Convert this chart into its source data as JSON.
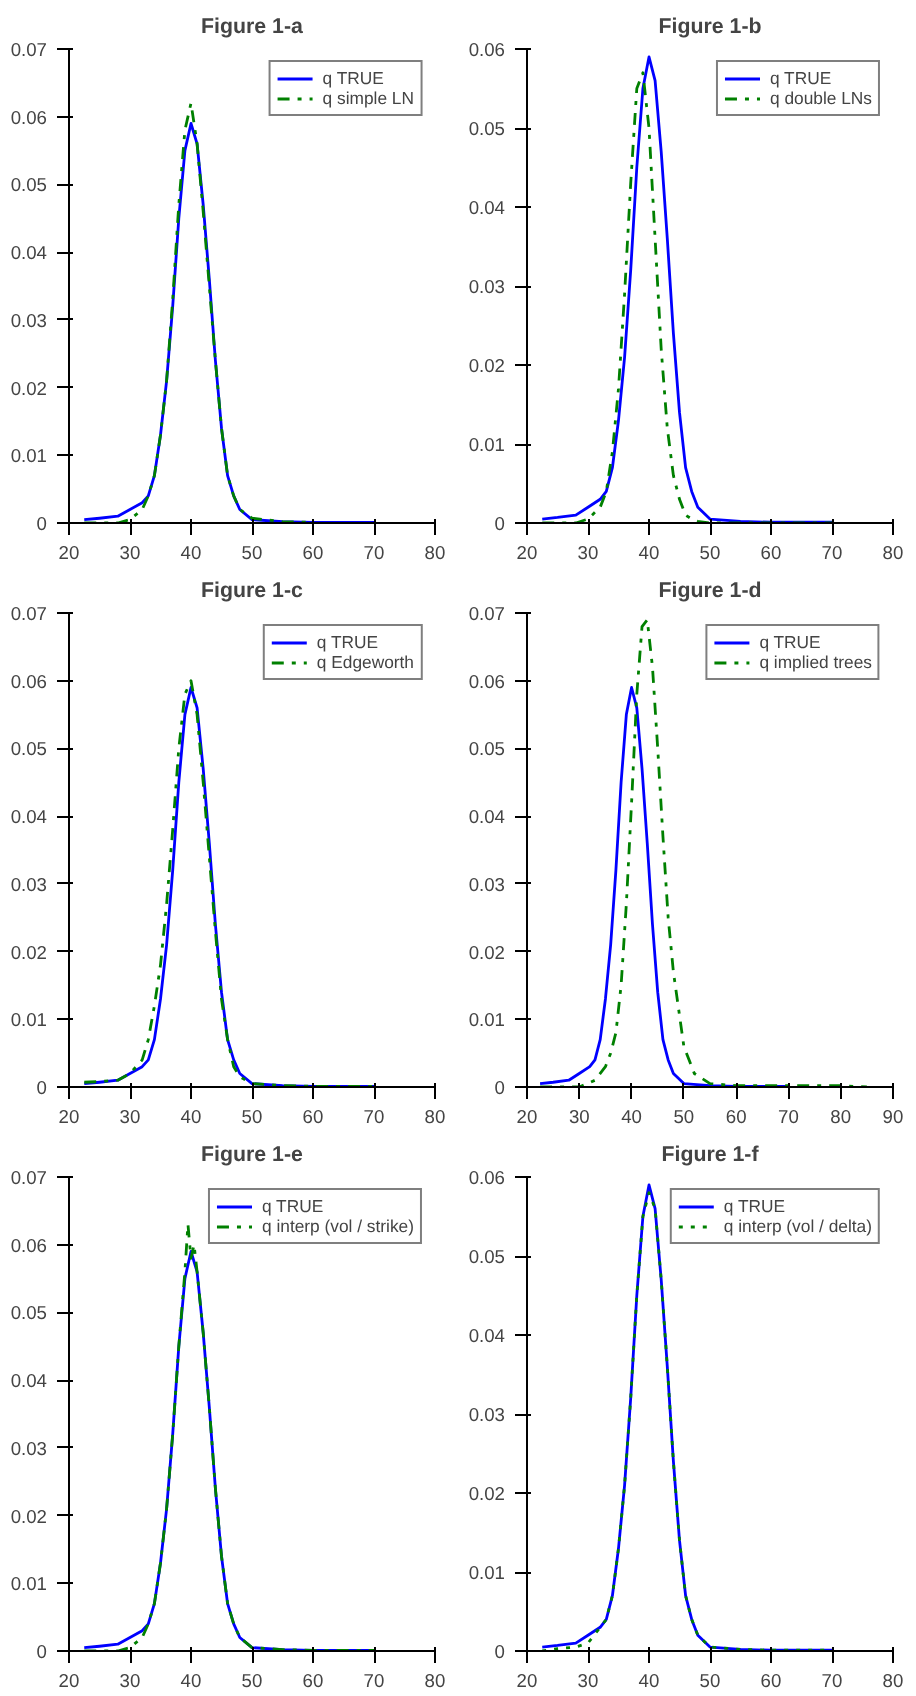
{
  "chart_data": [
    {
      "type": "line",
      "title": "Figure 1-a",
      "xlim": [
        20,
        80
      ],
      "xticks": [
        20,
        30,
        40,
        50,
        60,
        70,
        80
      ],
      "ylim": [
        0,
        0.07
      ],
      "yticks": [
        0,
        0.01,
        0.02,
        0.03,
        0.04,
        0.05,
        0.06,
        0.07
      ],
      "legend": "top right",
      "grid": false,
      "series": [
        {
          "name": "q TRUE",
          "color": "#0000ff",
          "line_style": "solid",
          "x": [
            22.5,
            25,
            28,
            30,
            32,
            33,
            34,
            35,
            36,
            37,
            38,
            39,
            40,
            41,
            42,
            43,
            44,
            45,
            46,
            47,
            48,
            50,
            55,
            60,
            70
          ],
          "values": [
            0.0005,
            0.0007,
            0.001,
            0.002,
            0.003,
            0.004,
            0.007,
            0.013,
            0.021,
            0.032,
            0.045,
            0.055,
            0.059,
            0.056,
            0.047,
            0.036,
            0.024,
            0.014,
            0.007,
            0.004,
            0.002,
            0.0005,
            0.0002,
            0.0001,
            0.0001
          ]
        },
        {
          "name": "q simple LN",
          "color": "#008000",
          "line_style": "dashdot",
          "x": [
            22.5,
            28,
            30,
            32,
            33,
            34,
            35,
            36,
            37,
            38,
            39,
            40,
            41,
            42,
            43,
            44,
            45,
            46,
            47,
            48,
            50,
            55,
            60
          ],
          "values": [
            0,
            0,
            0.0005,
            0.002,
            0.004,
            0.007,
            0.013,
            0.021,
            0.033,
            0.047,
            0.058,
            0.062,
            0.056,
            0.046,
            0.035,
            0.024,
            0.014,
            0.007,
            0.004,
            0.002,
            0.0007,
            0.0002,
            0.0001
          ]
        }
      ]
    },
    {
      "type": "line",
      "title": "Figure 1-b",
      "xlim": [
        20,
        80
      ],
      "xticks": [
        20,
        30,
        40,
        50,
        60,
        70,
        80
      ],
      "ylim": [
        0,
        0.06
      ],
      "yticks": [
        0,
        0.01,
        0.02,
        0.03,
        0.04,
        0.05,
        0.06
      ],
      "legend": "top right",
      "grid": false,
      "series": [
        {
          "name": "q TRUE",
          "color": "#0000ff",
          "line_style": "solid",
          "x": [
            22.5,
            25,
            28,
            30,
            32,
            33,
            34,
            35,
            36,
            37,
            38,
            39,
            40,
            41,
            42,
            43,
            44,
            45,
            46,
            47,
            48,
            50,
            55,
            60,
            70
          ],
          "values": [
            0.0005,
            0.0007,
            0.001,
            0.002,
            0.003,
            0.004,
            0.007,
            0.013,
            0.021,
            0.032,
            0.045,
            0.055,
            0.059,
            0.056,
            0.047,
            0.036,
            0.024,
            0.014,
            0.007,
            0.004,
            0.002,
            0.0005,
            0.0002,
            0.0001,
            0.0001
          ]
        },
        {
          "name": "q double LNs",
          "color": "#008000",
          "line_style": "dashdot",
          "x": [
            22.5,
            28,
            30,
            32,
            33,
            34,
            35,
            36,
            37,
            38,
            39,
            40,
            41,
            42,
            43,
            44,
            45,
            46,
            47,
            48,
            50,
            55,
            60,
            70
          ],
          "values": [
            0,
            0,
            0.0005,
            0.002,
            0.004,
            0.009,
            0.017,
            0.029,
            0.043,
            0.055,
            0.057,
            0.05,
            0.036,
            0.022,
            0.012,
            0.006,
            0.003,
            0.001,
            0.0005,
            0.0002,
            0,
            0,
            0,
            0
          ]
        }
      ]
    },
    {
      "type": "line",
      "title": "Figure 1-c",
      "xlim": [
        20,
        80
      ],
      "xticks": [
        20,
        30,
        40,
        50,
        60,
        70,
        80
      ],
      "ylim": [
        0,
        0.07
      ],
      "yticks": [
        0,
        0.01,
        0.02,
        0.03,
        0.04,
        0.05,
        0.06,
        0.07
      ],
      "legend": "top right",
      "grid": false,
      "series": [
        {
          "name": "q TRUE",
          "color": "#0000ff",
          "line_style": "solid",
          "x": [
            22.5,
            25,
            28,
            30,
            32,
            33,
            34,
            35,
            36,
            37,
            38,
            39,
            40,
            41,
            42,
            43,
            44,
            45,
            46,
            47,
            48,
            50,
            55,
            60,
            70
          ],
          "values": [
            0.0005,
            0.0007,
            0.001,
            0.002,
            0.003,
            0.004,
            0.007,
            0.013,
            0.021,
            0.032,
            0.045,
            0.055,
            0.059,
            0.056,
            0.047,
            0.036,
            0.024,
            0.014,
            0.007,
            0.004,
            0.002,
            0.0005,
            0.0002,
            0.0001,
            0.0001
          ]
        },
        {
          "name": "q Edgeworth",
          "color": "#008000",
          "line_style": "dashdot",
          "x": [
            22.5,
            25,
            28,
            30,
            32,
            33,
            34,
            35,
            36,
            37,
            38,
            39,
            40,
            41,
            42,
            43,
            44,
            45,
            46,
            47,
            48,
            50,
            55,
            60,
            70
          ],
          "values": [
            0.0007,
            0.0008,
            0.001,
            0.002,
            0.004,
            0.007,
            0.012,
            0.018,
            0.027,
            0.038,
            0.05,
            0.058,
            0.06,
            0.055,
            0.045,
            0.034,
            0.023,
            0.013,
            0.007,
            0.003,
            0.0015,
            0.0005,
            0.0002,
            0.0001,
            0.0001
          ]
        }
      ]
    },
    {
      "type": "line",
      "title": "Figure 1-d",
      "xlim": [
        20,
        90
      ],
      "xticks": [
        20,
        30,
        40,
        50,
        60,
        70,
        80,
        90
      ],
      "ylim": [
        0,
        0.07
      ],
      "yticks": [
        0,
        0.01,
        0.02,
        0.03,
        0.04,
        0.05,
        0.06,
        0.07
      ],
      "legend": "top right",
      "grid": false,
      "series": [
        {
          "name": "q TRUE",
          "color": "#0000ff",
          "line_style": "solid",
          "x": [
            22.5,
            25,
            28,
            30,
            32,
            33,
            34,
            35,
            36,
            37,
            38,
            39,
            40,
            41,
            42,
            43,
            44,
            45,
            46,
            47,
            48,
            50,
            55,
            60,
            70
          ],
          "values": [
            0.0005,
            0.0007,
            0.001,
            0.002,
            0.003,
            0.004,
            0.007,
            0.013,
            0.021,
            0.032,
            0.045,
            0.055,
            0.059,
            0.056,
            0.047,
            0.036,
            0.024,
            0.014,
            0.007,
            0.004,
            0.002,
            0.0005,
            0.0002,
            0.0001,
            0.0001
          ]
        },
        {
          "name": "q implied trees",
          "color": "#008000",
          "line_style": "dashdot",
          "x": [
            22.5,
            30,
            33,
            35,
            36,
            37,
            38,
            39,
            40,
            41,
            42,
            43,
            44,
            45,
            46,
            47,
            48,
            50,
            52,
            55,
            60,
            70,
            80,
            85
          ],
          "values": [
            0,
            0,
            0.001,
            0.003,
            0.005,
            0.008,
            0.015,
            0.027,
            0.042,
            0.058,
            0.068,
            0.069,
            0.062,
            0.05,
            0.037,
            0.025,
            0.017,
            0.006,
            0.002,
            0.0005,
            0.0002,
            0.0002,
            0.0002,
            0
          ]
        }
      ]
    },
    {
      "type": "line",
      "title": "Figure 1-e",
      "xlim": [
        20,
        80
      ],
      "xticks": [
        20,
        30,
        40,
        50,
        60,
        70,
        80
      ],
      "ylim": [
        0,
        0.07
      ],
      "yticks": [
        0,
        0.01,
        0.02,
        0.03,
        0.04,
        0.05,
        0.06,
        0.07
      ],
      "legend": "top right",
      "grid": false,
      "series": [
        {
          "name": "q TRUE",
          "color": "#0000ff",
          "line_style": "solid",
          "x": [
            22.5,
            25,
            28,
            30,
            32,
            33,
            34,
            35,
            36,
            37,
            38,
            39,
            40,
            41,
            42,
            43,
            44,
            45,
            46,
            47,
            48,
            50,
            55,
            60,
            70
          ],
          "values": [
            0.0005,
            0.0007,
            0.001,
            0.002,
            0.003,
            0.004,
            0.007,
            0.013,
            0.021,
            0.032,
            0.045,
            0.055,
            0.059,
            0.056,
            0.047,
            0.036,
            0.024,
            0.014,
            0.007,
            0.004,
            0.002,
            0.0005,
            0.0002,
            0.0001,
            0.0001
          ]
        },
        {
          "name": "q interp (vol / strike)",
          "color": "#008000",
          "line_style": "dashdot",
          "x": [
            22.5,
            28,
            30,
            32,
            33,
            34,
            35,
            36,
            37,
            38,
            39,
            39.5,
            40,
            40.5,
            41,
            42,
            43,
            44,
            45,
            46,
            47,
            48,
            50,
            55,
            60,
            70
          ],
          "values": [
            0,
            0,
            0.0005,
            0.002,
            0.004,
            0.007,
            0.013,
            0.021,
            0.032,
            0.045,
            0.056,
            0.063,
            0.058,
            0.06,
            0.056,
            0.047,
            0.036,
            0.024,
            0.014,
            0.007,
            0.004,
            0.002,
            0.0005,
            0.0002,
            0.0001,
            0.0001
          ]
        }
      ]
    },
    {
      "type": "line",
      "title": "Figure 1-f",
      "xlim": [
        20,
        80
      ],
      "xticks": [
        20,
        30,
        40,
        50,
        60,
        70,
        80
      ],
      "ylim": [
        0,
        0.06
      ],
      "yticks": [
        0,
        0.01,
        0.02,
        0.03,
        0.04,
        0.05,
        0.06
      ],
      "legend": "top right",
      "grid": false,
      "series": [
        {
          "name": "q TRUE",
          "color": "#0000ff",
          "line_style": "solid",
          "x": [
            22.5,
            25,
            28,
            30,
            32,
            33,
            34,
            35,
            36,
            37,
            38,
            39,
            40,
            41,
            42,
            43,
            44,
            45,
            46,
            47,
            48,
            50,
            55,
            60,
            70
          ],
          "values": [
            0.0005,
            0.0007,
            0.001,
            0.002,
            0.003,
            0.004,
            0.007,
            0.013,
            0.021,
            0.032,
            0.045,
            0.055,
            0.059,
            0.056,
            0.047,
            0.036,
            0.024,
            0.014,
            0.007,
            0.004,
            0.002,
            0.0005,
            0.0002,
            0.0001,
            0.0001
          ]
        },
        {
          "name": "q interp (vol / delta)",
          "color": "#008000",
          "line_style": "dotted",
          "x": [
            22.5,
            25,
            28,
            30,
            32,
            33,
            34,
            35,
            36,
            37,
            38,
            39,
            40,
            41,
            42,
            43,
            44,
            45,
            46,
            47,
            48,
            50,
            55,
            60,
            70
          ],
          "values": [
            0,
            0.0003,
            0.0005,
            0.001,
            0.003,
            0.004,
            0.007,
            0.013,
            0.021,
            0.032,
            0.045,
            0.055,
            0.058,
            0.056,
            0.047,
            0.036,
            0.024,
            0.014,
            0.007,
            0.004,
            0.002,
            0.0005,
            0.0002,
            0.0001,
            0.0001
          ]
        }
      ]
    }
  ]
}
